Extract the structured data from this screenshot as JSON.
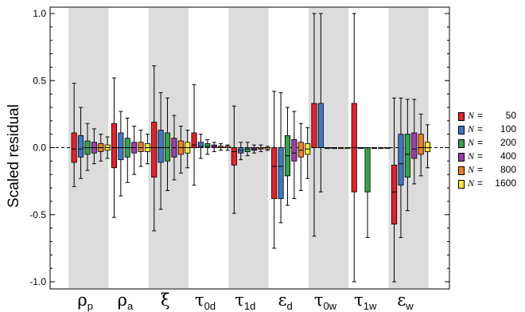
{
  "chart_data": {
    "type": "boxplot",
    "ylabel": "Scaled residual",
    "ylim": [
      -1.05,
      1.05
    ],
    "yticks": [
      -1.0,
      -0.5,
      0.0,
      0.5,
      1.0
    ],
    "ytick_labels": [
      "-1.0",
      "-0.5",
      "0.0",
      "0.5",
      "1.0"
    ],
    "shaded_groups": [
      0,
      2,
      4,
      6,
      8
    ],
    "groups": [
      {
        "base": "ρ",
        "sub": "p"
      },
      {
        "base": "ρ",
        "sub": "a"
      },
      {
        "base": "ξ",
        "sub": ""
      },
      {
        "base": "τ",
        "sub": "0d"
      },
      {
        "base": "τ",
        "sub": "1d"
      },
      {
        "base": "ε",
        "sub": "d"
      },
      {
        "base": "τ",
        "sub": "0w"
      },
      {
        "base": "τ",
        "sub": "1w"
      },
      {
        "base": "ε",
        "sub": "w"
      }
    ],
    "series": [
      {
        "name": "50",
        "color": "#e8202a",
        "boxes": [
          {
            "min": -0.29,
            "q1": -0.11,
            "median": -0.01,
            "q3": 0.11,
            "max": 0.48
          },
          {
            "min": -0.52,
            "q1": -0.15,
            "median": 0.0,
            "q3": 0.18,
            "max": 0.52
          },
          {
            "min": -0.62,
            "q1": -0.22,
            "median": 0.0,
            "q3": 0.19,
            "max": 0.61
          },
          {
            "min": -0.28,
            "q1": 0.0,
            "median": 0.02,
            "q3": 0.11,
            "max": 0.47
          },
          {
            "min": -0.49,
            "q1": -0.13,
            "median": -0.03,
            "q3": 0.0,
            "max": 0.31
          },
          {
            "min": -0.75,
            "q1": -0.38,
            "median": -0.14,
            "q3": 0.0,
            "max": 0.42
          },
          {
            "min": -0.66,
            "q1": 0.0,
            "median": 0.0,
            "q3": 0.33,
            "max": 1.0
          },
          {
            "min": -1.0,
            "q1": -0.33,
            "median": 0.0,
            "q3": 0.33,
            "max": 1.0
          },
          {
            "min": -1.0,
            "q1": -0.57,
            "median": -0.33,
            "q3": -0.13,
            "max": 0.37
          }
        ]
      },
      {
        "name": "100",
        "color": "#3c78c8",
        "boxes": [
          {
            "min": -0.23,
            "q1": -0.07,
            "median": -0.01,
            "q3": 0.09,
            "max": 0.3
          },
          {
            "min": -0.36,
            "q1": -0.09,
            "median": 0.0,
            "q3": 0.11,
            "max": 0.27
          },
          {
            "min": -0.46,
            "q1": -0.11,
            "median": 0.0,
            "q3": 0.13,
            "max": 0.41
          },
          {
            "min": -0.08,
            "q1": 0.0,
            "median": 0.01,
            "q3": 0.04,
            "max": 0.1
          },
          {
            "min": -0.09,
            "q1": -0.04,
            "median": -0.02,
            "q3": 0.0,
            "max": 0.04
          },
          {
            "min": -0.56,
            "q1": -0.38,
            "median": -0.14,
            "q3": 0.0,
            "max": 0.41
          },
          {
            "min": -0.33,
            "q1": 0.0,
            "median": 0.0,
            "q3": 0.33,
            "max": 1.0
          },
          {
            "min": 0.0,
            "q1": 0.0,
            "median": 0.0,
            "q3": 0.0,
            "max": 0.0
          },
          {
            "min": -0.67,
            "q1": -0.28,
            "median": -0.12,
            "q3": 0.1,
            "max": 0.37
          }
        ]
      },
      {
        "name": "200",
        "color": "#34a24a",
        "boxes": [
          {
            "min": -0.17,
            "q1": -0.05,
            "median": 0.0,
            "q3": 0.05,
            "max": 0.18
          },
          {
            "min": -0.26,
            "q1": -0.07,
            "median": 0.0,
            "q3": 0.07,
            "max": 0.22
          },
          {
            "min": -0.32,
            "q1": -0.1,
            "median": 0.0,
            "q3": 0.11,
            "max": 0.37
          },
          {
            "min": -0.05,
            "q1": 0.0,
            "median": 0.01,
            "q3": 0.03,
            "max": 0.06
          },
          {
            "min": -0.06,
            "q1": -0.03,
            "median": -0.01,
            "q3": 0.0,
            "max": 0.04
          },
          {
            "min": -0.43,
            "q1": -0.21,
            "median": -0.06,
            "q3": 0.09,
            "max": 0.3
          },
          {
            "min": 0.0,
            "q1": 0.0,
            "median": 0.0,
            "q3": 0.0,
            "max": 0.0
          },
          {
            "min": -0.67,
            "q1": -0.33,
            "median": 0.0,
            "q3": 0.0,
            "max": 0.0
          },
          {
            "min": -0.47,
            "q1": -0.22,
            "median": -0.05,
            "q3": 0.1,
            "max": 0.36
          }
        ]
      },
      {
        "name": "400",
        "color": "#9a3fa8",
        "boxes": [
          {
            "min": -0.12,
            "q1": -0.04,
            "median": 0.0,
            "q3": 0.04,
            "max": 0.14
          },
          {
            "min": -0.2,
            "q1": -0.04,
            "median": 0.0,
            "q3": 0.04,
            "max": 0.16
          },
          {
            "min": -0.24,
            "q1": -0.07,
            "median": 0.0,
            "q3": 0.07,
            "max": 0.24
          },
          {
            "min": -0.03,
            "q1": 0.0,
            "median": 0.01,
            "q3": 0.02,
            "max": 0.04
          },
          {
            "min": -0.04,
            "q1": -0.02,
            "median": -0.01,
            "q3": 0.0,
            "max": 0.02
          },
          {
            "min": -0.38,
            "q1": -0.1,
            "median": -0.04,
            "q3": 0.06,
            "max": 0.27
          },
          {
            "min": 0.0,
            "q1": 0.0,
            "median": 0.0,
            "q3": 0.0,
            "max": 0.0
          },
          {
            "min": 0.0,
            "q1": 0.0,
            "median": 0.0,
            "q3": 0.0,
            "max": 0.0
          },
          {
            "min": -0.27,
            "q1": -0.08,
            "median": -0.01,
            "q3": 0.11,
            "max": 0.36
          }
        ]
      },
      {
        "name": "800",
        "color": "#f08020",
        "boxes": [
          {
            "min": -0.1,
            "q1": -0.03,
            "median": 0.0,
            "q3": 0.03,
            "max": 0.1
          },
          {
            "min": -0.14,
            "q1": -0.03,
            "median": 0.0,
            "q3": 0.04,
            "max": 0.13
          },
          {
            "min": -0.19,
            "q1": -0.05,
            "median": 0.0,
            "q3": 0.05,
            "max": 0.16
          },
          {
            "min": -0.02,
            "q1": 0.0,
            "median": 0.01,
            "q3": 0.01,
            "max": 0.03
          },
          {
            "min": -0.03,
            "q1": -0.01,
            "median": -0.01,
            "q3": 0.0,
            "max": 0.02
          },
          {
            "min": -0.32,
            "q1": -0.07,
            "median": -0.02,
            "q3": 0.04,
            "max": 0.18
          },
          {
            "min": 0.0,
            "q1": 0.0,
            "median": 0.0,
            "q3": 0.0,
            "max": 0.0
          },
          {
            "min": 0.0,
            "q1": 0.0,
            "median": 0.0,
            "q3": 0.0,
            "max": 0.0
          },
          {
            "min": -0.21,
            "q1": -0.05,
            "median": 0.0,
            "q3": 0.1,
            "max": 0.25
          }
        ]
      },
      {
        "name": "1600",
        "color": "#f7e633",
        "boxes": [
          {
            "min": -0.08,
            "q1": -0.02,
            "median": 0.0,
            "q3": 0.02,
            "max": 0.08
          },
          {
            "min": -0.12,
            "q1": -0.03,
            "median": 0.0,
            "q3": 0.03,
            "max": 0.1
          },
          {
            "min": -0.15,
            "q1": -0.04,
            "median": 0.0,
            "q3": 0.04,
            "max": 0.13
          },
          {
            "min": -0.02,
            "q1": 0.0,
            "median": 0.01,
            "q3": 0.01,
            "max": 0.02
          },
          {
            "min": -0.02,
            "q1": -0.01,
            "median": 0.0,
            "q3": 0.0,
            "max": 0.01
          },
          {
            "min": -0.23,
            "q1": -0.05,
            "median": -0.01,
            "q3": 0.03,
            "max": 0.15
          },
          {
            "min": 0.0,
            "q1": 0.0,
            "median": 0.0,
            "q3": 0.0,
            "max": 0.0
          },
          {
            "min": 0.0,
            "q1": 0.0,
            "median": 0.0,
            "q3": 0.0,
            "max": 0.0
          },
          {
            "min": -0.15,
            "q1": -0.03,
            "median": 0.0,
            "q3": 0.04,
            "max": 0.17
          }
        ]
      }
    ],
    "legend": {
      "position": "right",
      "label_prefix": "N",
      "label_eq": "="
    }
  }
}
